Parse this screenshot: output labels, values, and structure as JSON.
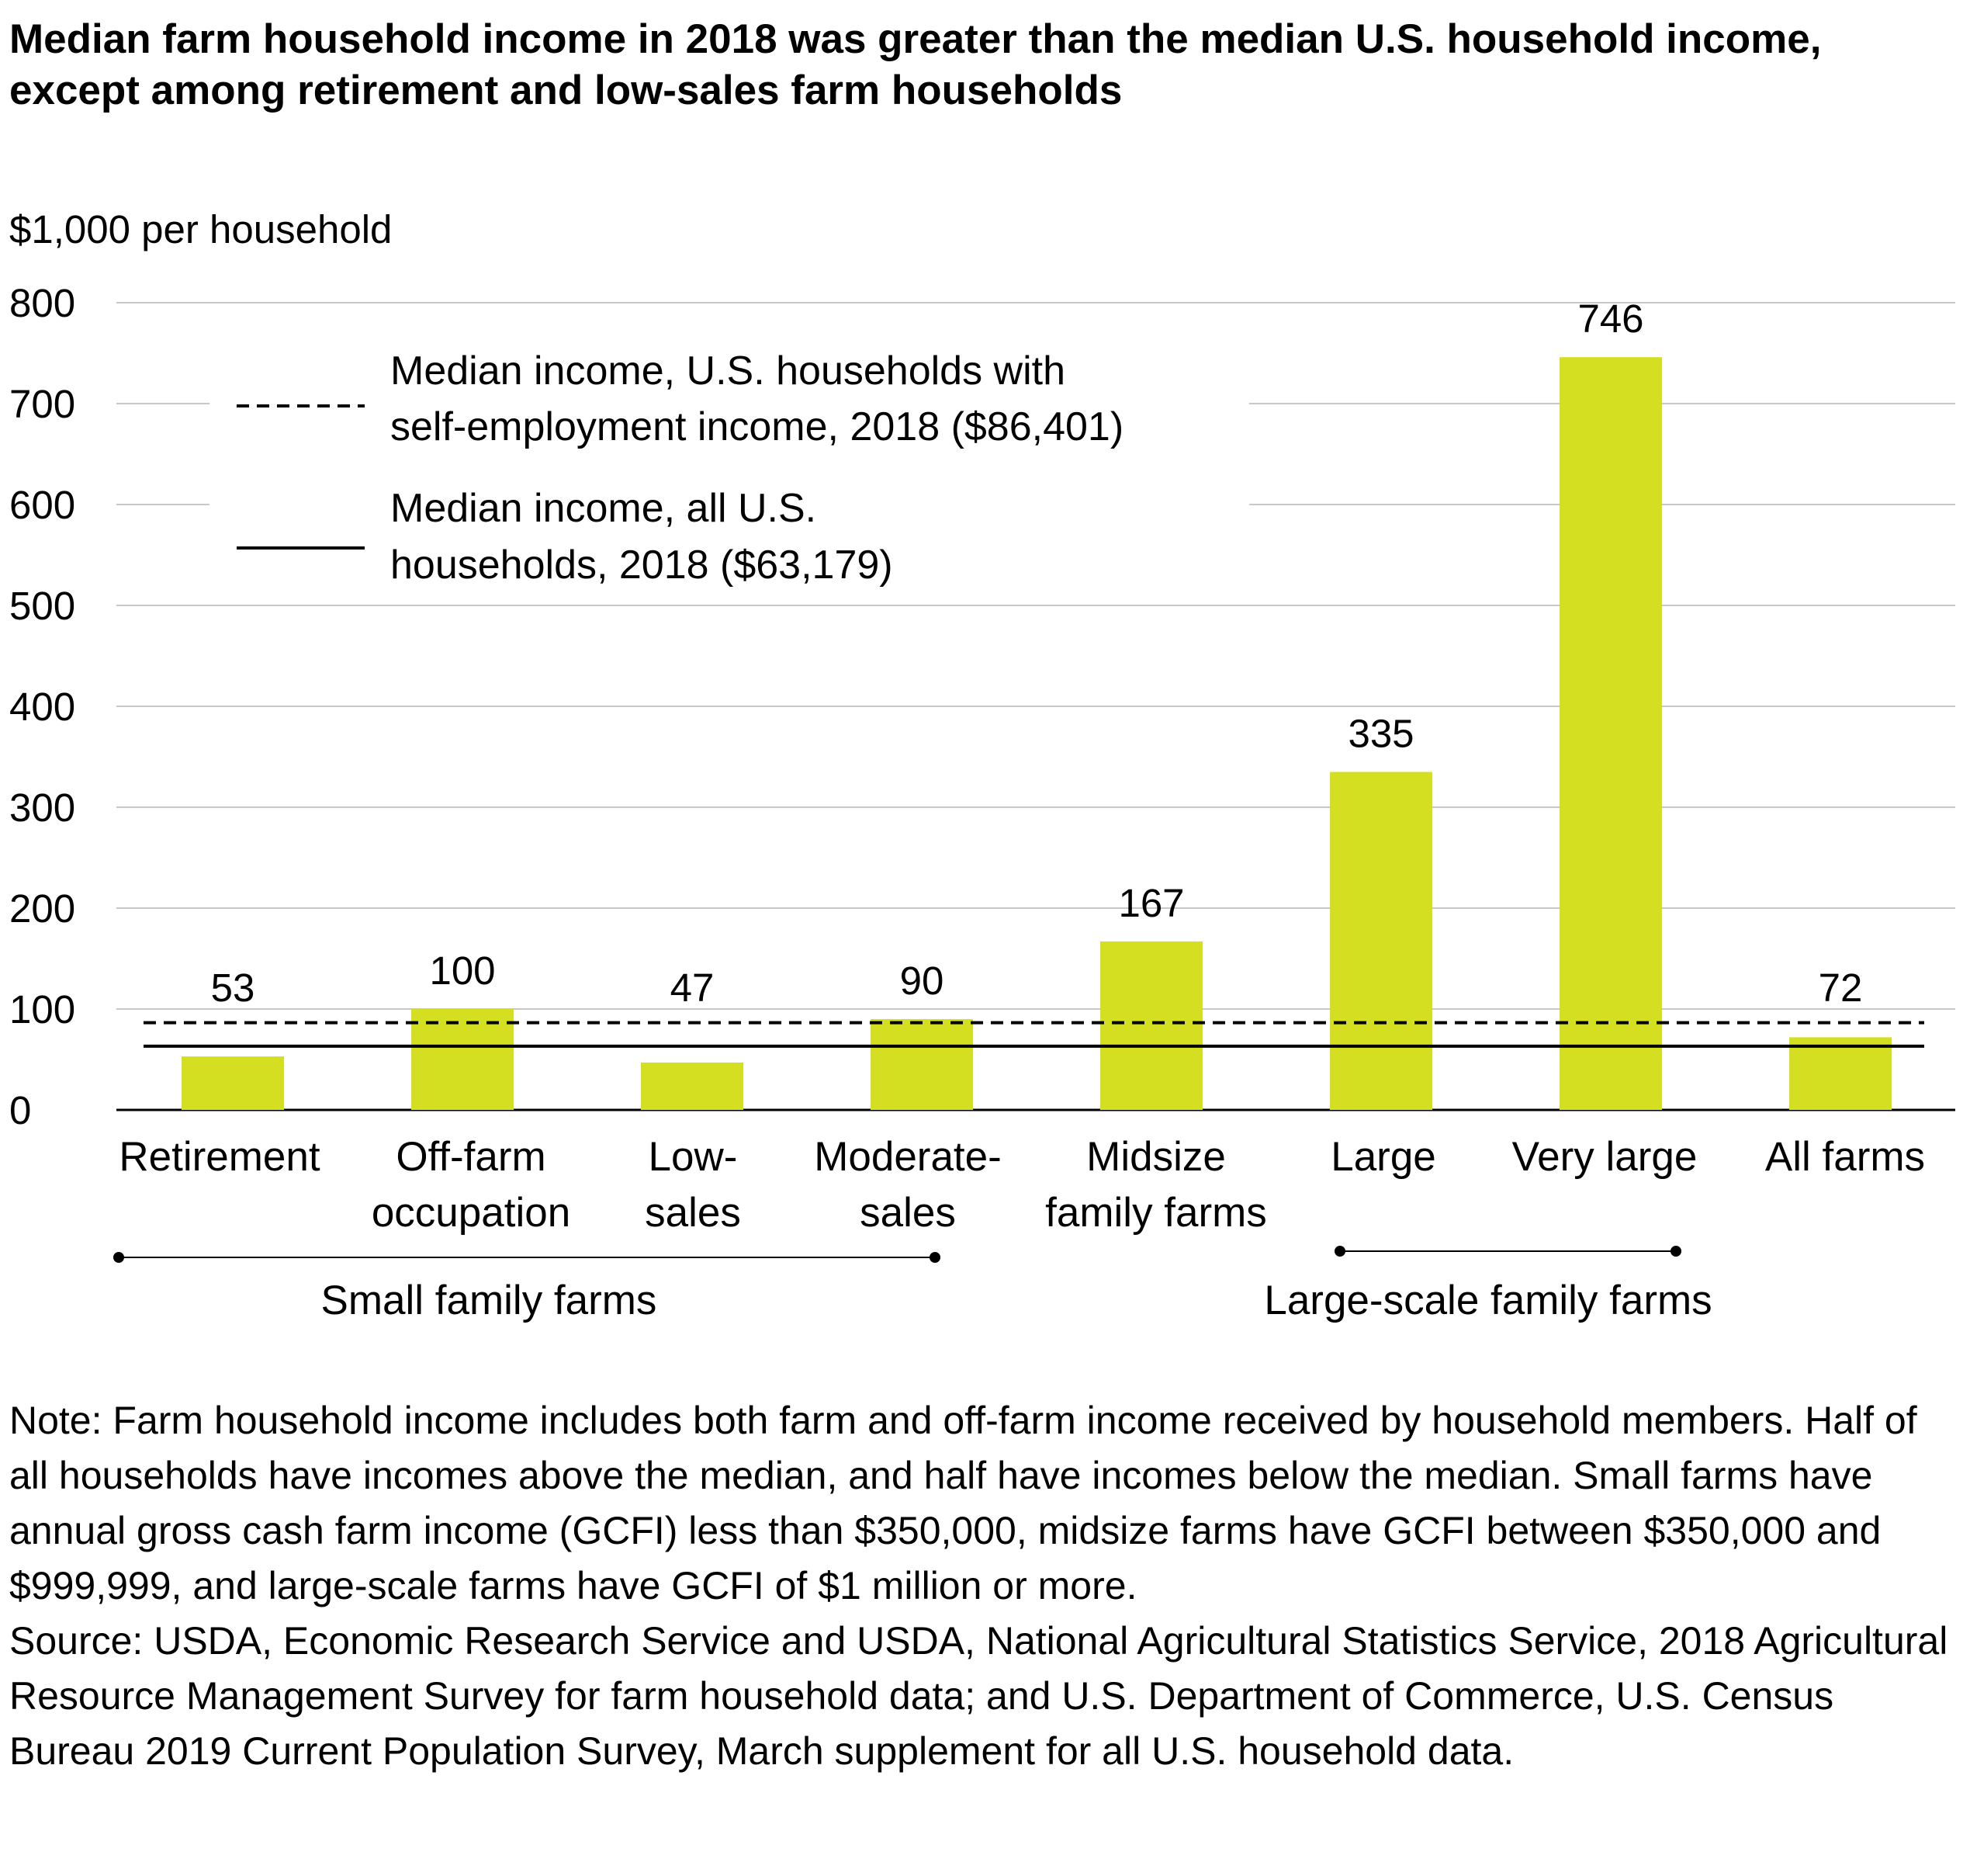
{
  "title": "Median farm household income in 2018 was greater than the median U.S. household income, except among retirement and low-sales farm households",
  "chart_data": {
    "type": "bar",
    "ylabel": "$1,000 per household",
    "ylim": [
      0,
      800
    ],
    "yticks": [
      "0",
      "100",
      "200",
      "300",
      "400",
      "500",
      "600",
      "700",
      "800"
    ],
    "grid": true,
    "bar_color": "#d4df22",
    "categories": [
      [
        "Retirement"
      ],
      [
        "Off-farm",
        "occupation"
      ],
      [
        "Low-",
        "sales"
      ],
      [
        "Moderate-",
        "sales"
      ],
      [
        "Midsize",
        "family farms"
      ],
      [
        "Large"
      ],
      [
        "Very large"
      ],
      [
        "All farms"
      ]
    ],
    "values": [
      53,
      100,
      47,
      90,
      167,
      335,
      746,
      72
    ],
    "value_labels": [
      "53",
      "100",
      "47",
      "90",
      "167",
      "335",
      "746",
      "72"
    ],
    "reference_lines": [
      {
        "style": "dashed",
        "value": 86.401,
        "label": [
          "Median income, U.S. households with",
          "self-employment income, 2018 ($86,401)"
        ]
      },
      {
        "style": "solid",
        "value": 63.179,
        "label": [
          "Median income, all U.S.",
          "households, 2018 ($63,179)"
        ]
      }
    ],
    "groups": [
      {
        "label": "Small family farms",
        "from": 0,
        "to": 3
      },
      {
        "label": "Large-scale family farms",
        "from": 5,
        "to": 6
      }
    ]
  },
  "notes": [
    "Note: Farm household income includes both farm and off-farm income received by household members. Half of all households have incomes above the median, and half have incomes below the median. Small farms have annual gross cash farm income (GCFI) less than $350,000, midsize farms have GCFI between $350,000 and $999,999, and large-scale farms have GCFI of $1 million or more.",
    "Source: USDA, Economic Research Service and USDA, National Agricultural Statistics Service, 2018 Agricultural Resource Management Survey for farm household data; and U.S. Department of Commerce, U.S. Census Bureau 2019 Current Population Survey, March supplement for all U.S. household data."
  ]
}
